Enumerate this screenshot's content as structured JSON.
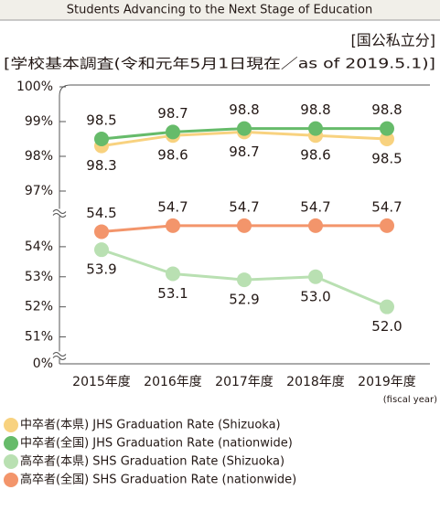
{
  "chart_data": {
    "type": "line",
    "header": "Students Advancing to the Next Stage of Education",
    "title": "[国公私立分]",
    "subtitle": "[学校基本調査(令和元年5月1日現在／as of 2019.5.1)]",
    "x_note": "(fiscal year)",
    "categories": [
      "2015年度",
      "2016年度",
      "2017年度",
      "2018年度",
      "2019年度"
    ],
    "ylim": [
      0,
      100
    ],
    "axis_breaks": [
      [
        0.5,
        50.5
      ],
      [
        55,
        96.5
      ]
    ],
    "yticks": [
      {
        "value": 100,
        "label": "100%"
      },
      {
        "value": 99,
        "label": "99%"
      },
      {
        "value": 98,
        "label": "98%"
      },
      {
        "value": 97,
        "label": "97%"
      },
      {
        "value": 54,
        "label": "54%"
      },
      {
        "value": 53,
        "label": "53%"
      },
      {
        "value": 52,
        "label": "52%"
      },
      {
        "value": 51,
        "label": "51%"
      },
      {
        "value": 0,
        "label": "0%"
      }
    ],
    "series": [
      {
        "name": "中卒者(本県) JHS Graduation Rate (Shizuoka)",
        "color": "#f8d27f",
        "values": [
          98.3,
          98.6,
          98.7,
          98.6,
          98.5
        ]
      },
      {
        "name": "中卒者(全国) JHS Graduation Rate (nationwide)",
        "color": "#66bb6a",
        "values": [
          98.5,
          98.7,
          98.8,
          98.8,
          98.8
        ]
      },
      {
        "name": "高卒者(本県) SHS Graduation Rate (Shizuoka)",
        "color": "#b9e0b2",
        "values": [
          53.9,
          53.1,
          52.9,
          53,
          52
        ],
        "value_labels": [
          "53.9",
          "53.1",
          "52.9",
          "53.0",
          "52.0"
        ]
      },
      {
        "name": "高卒者(全国) SHS Graduation Rate (nationwide)",
        "color": "#f3956b",
        "values": [
          54.5,
          54.7,
          54.7,
          54.7,
          54.7
        ]
      }
    ]
  }
}
